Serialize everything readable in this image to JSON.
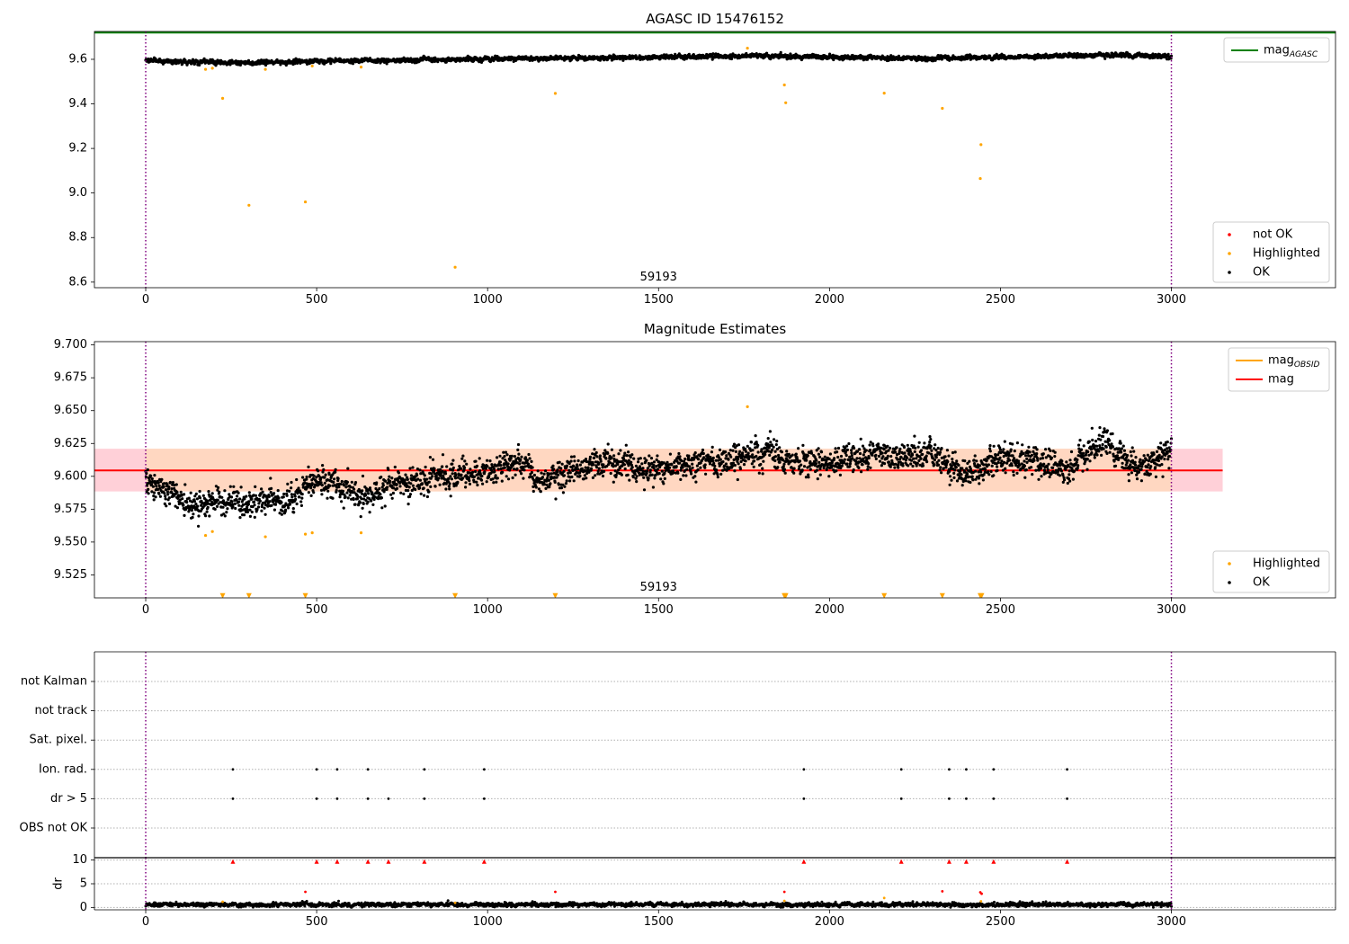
{
  "figure": {
    "colors": {
      "ok": "#000000",
      "highlighted": "#ffa500",
      "not_ok": "#ff0000",
      "agasc_line": "#008000",
      "mag_line": "#ff0000",
      "obsid_line": "#ffa500",
      "band_outer": "#ffc0cb",
      "band_inner": "#ffdab9",
      "obs_boundary": "#800080",
      "grid": "#b0b0b0"
    }
  },
  "chart_data": [
    {
      "id": "top",
      "type": "scatter",
      "title": "AGASC ID 15476152",
      "xlabel": "",
      "ylabel": "",
      "xlim": [
        -150,
        3480
      ],
      "ylim": [
        8.575,
        9.725
      ],
      "xticks": [
        0,
        500,
        1000,
        1500,
        2000,
        2500,
        3000
      ],
      "yticks": [
        8.6,
        8.8,
        9.0,
        9.2,
        9.4,
        9.6
      ],
      "ytick_labels": [
        "8.6",
        "8.8",
        "9.0",
        "9.2",
        "9.4",
        "9.6"
      ],
      "annotation": "59193",
      "obs_boundaries": [
        0,
        3000
      ],
      "hlines": [
        {
          "name": "mag_AGASC",
          "label_base": "mag",
          "label_sub": "AGASC",
          "y": 9.72,
          "x": [
            -150,
            3480
          ],
          "color": "#008000"
        }
      ],
      "legends": [
        {
          "position": "top-right",
          "entries": [
            {
              "label": "mag",
              "sub": "AGASC",
              "kind": "line",
              "color": "#008000"
            }
          ]
        },
        {
          "position": "bottom-right",
          "entries": [
            {
              "label": "not OK",
              "kind": "dot",
              "color": "#ff0000"
            },
            {
              "label": "Highlighted",
              "kind": "dot",
              "color": "#ffa500"
            },
            {
              "label": "OK",
              "kind": "dot",
              "color": "#000000"
            }
          ]
        }
      ],
      "series": [
        {
          "name": "OK",
          "color": "#000000",
          "generated": {
            "n": 3000,
            "x_range": [
              0,
              3000
            ],
            "mean": 9.6,
            "wobble": [
              [
                140,
                0.008
              ],
              [
                480,
                0.01
              ],
              [
                1100,
                0.007
              ]
            ],
            "trend": [
              [
                0,
                9.595
              ],
              [
                250,
                9.584
              ],
              [
                700,
                9.597
              ],
              [
                1200,
                9.605
              ],
              [
                1800,
                9.615
              ],
              [
                2300,
                9.603
              ],
              [
                2800,
                9.62
              ],
              [
                3000,
                9.612
              ]
            ],
            "noise": 0.008
          }
        },
        {
          "name": "Highlighted",
          "color": "#ffa500",
          "points": [
            [
              175,
              9.555
            ],
            [
              195,
              9.56
            ],
            [
              225,
              9.425
            ],
            [
              302,
              8.945
            ],
            [
              350,
              9.555
            ],
            [
              467,
              8.96
            ],
            [
              487,
              9.57
            ],
            [
              630,
              9.565
            ],
            [
              905,
              8.667
            ],
            [
              1198,
              9.447
            ],
            [
              1760,
              9.65
            ],
            [
              1868,
              9.485
            ],
            [
              1872,
              9.405
            ],
            [
              2160,
              9.448
            ],
            [
              2330,
              9.38
            ],
            [
              2443,
              9.217
            ],
            [
              2441,
              9.065
            ]
          ]
        }
      ]
    },
    {
      "id": "middle",
      "type": "scatter",
      "title": "Magnitude Estimates",
      "xlabel": "",
      "ylabel": "",
      "xlim": [
        -150,
        3480
      ],
      "ylim": [
        9.5075,
        9.7025
      ],
      "xticks": [
        0,
        500,
        1000,
        1500,
        2000,
        2500,
        3000
      ],
      "yticks": [
        9.525,
        9.55,
        9.575,
        9.6,
        9.625,
        9.65,
        9.675,
        9.7
      ],
      "ytick_labels": [
        "9.525",
        "9.550",
        "9.575",
        "9.600",
        "9.625",
        "9.650",
        "9.675",
        "9.700"
      ],
      "annotation": "59193",
      "obs_boundaries": [
        0,
        3000
      ],
      "hlines": [
        {
          "name": "mag",
          "y": 9.6045,
          "x": [
            -150,
            3480
          ],
          "color": "#ff0000"
        }
      ],
      "bands": [
        {
          "name": "mag_range",
          "y": [
            9.5885,
            9.621
          ],
          "x": [
            -150,
            3150
          ],
          "color": "#ffc0cb"
        },
        {
          "name": "mag_obsid_range",
          "y": [
            9.5885,
            9.621
          ],
          "x": [
            0,
            3000
          ],
          "color": "#ffdab9"
        }
      ],
      "legends": [
        {
          "position": "top-right",
          "entries": [
            {
              "label": "mag",
              "sub": "OBSID",
              "kind": "line",
              "color": "#ffa500"
            },
            {
              "label": "mag",
              "kind": "line",
              "color": "#ff0000"
            }
          ]
        },
        {
          "position": "bottom-right",
          "entries": [
            {
              "label": "Highlighted",
              "kind": "dot",
              "color": "#ffa500"
            },
            {
              "label": "OK",
              "kind": "dot",
              "color": "#000000"
            }
          ]
        }
      ],
      "series": [
        {
          "name": "OK",
          "color": "#000000",
          "generated": {
            "n": 3000,
            "x_range": [
              0,
              3000
            ],
            "trend": [
              [
                0,
                9.598
              ],
              [
                120,
                9.578
              ],
              [
                250,
                9.582
              ],
              [
                400,
                9.58
              ],
              [
                520,
                9.6
              ],
              [
                640,
                9.582
              ],
              [
                700,
                9.592
              ],
              [
                900,
                9.6
              ],
              [
                1000,
                9.604
              ],
              [
                1120,
                9.612
              ],
              [
                1150,
                9.595
              ],
              [
                1300,
                9.61
              ],
              [
                1500,
                9.606
              ],
              [
                1700,
                9.612
              ],
              [
                1800,
                9.62
              ],
              [
                1900,
                9.61
              ],
              [
                2000,
                9.612
              ],
              [
                2300,
                9.618
              ],
              [
                2400,
                9.602
              ],
              [
                2500,
                9.615
              ],
              [
                2700,
                9.608
              ],
              [
                2800,
                9.625
              ],
              [
                2900,
                9.605
              ],
              [
                3000,
                9.618
              ]
            ],
            "noise": 0.009
          }
        },
        {
          "name": "Highlighted",
          "color": "#ffa500",
          "points": [
            [
              175,
              9.555
            ],
            [
              195,
              9.558
            ],
            [
              350,
              9.554
            ],
            [
              467,
              9.556
            ],
            [
              487,
              9.557
            ],
            [
              630,
              9.557
            ],
            [
              1760,
              9.653
            ]
          ]
        },
        {
          "name": "Highlighted (off scale)",
          "color": "#ffa500",
          "marker": "triangle-down",
          "x": [
            225,
            302,
            467,
            905,
            1198,
            1868,
            1872,
            2160,
            2330,
            2441,
            2445
          ],
          "y": 9.509
        }
      ]
    },
    {
      "id": "flags",
      "type": "scatter",
      "title": "",
      "xlabel": "",
      "ylabel": "",
      "xlim": [
        -150,
        3480
      ],
      "obs_boundaries": [
        0,
        3000
      ],
      "categories": [
        "OBS not OK",
        "dr > 5",
        "Ion. rad.",
        "Sat. pixel.",
        "not track",
        "not Kalman"
      ],
      "flag_points": {
        "Ion. rad.": [
          255,
          500,
          560,
          650,
          815,
          990,
          1925,
          2210,
          2350,
          2400,
          2480,
          2695
        ],
        "dr > 5": [
          255,
          500,
          560,
          650,
          710,
          815,
          990,
          1925,
          2210,
          2350,
          2400,
          2480,
          2695
        ]
      }
    },
    {
      "id": "dr",
      "type": "scatter",
      "title": "",
      "xlabel": "",
      "ylabel": "dr",
      "xlim": [
        -150,
        3480
      ],
      "ylim": [
        -0.5,
        10.5
      ],
      "xticks": [
        0,
        500,
        1000,
        1500,
        2000,
        2500,
        3000
      ],
      "yticks": [
        0,
        5,
        10
      ],
      "ytick_labels": [
        "0",
        "5",
        "10"
      ],
      "obs_boundaries": [
        0,
        3000
      ],
      "series": [
        {
          "name": "OK",
          "color": "#000000",
          "generated": {
            "n": 3000,
            "x_range": [
              0,
              3000
            ],
            "trend": [
              [
                0,
                0.6
              ],
              [
                3000,
                0.6
              ]
            ],
            "noise": 0.35,
            "min": 0
          }
        },
        {
          "name": "Highlighted",
          "color": "#ffa500",
          "points": [
            [
              225,
              1.2
            ],
            [
              905,
              1.0
            ],
            [
              1868,
              1.4
            ],
            [
              2160,
              2.0
            ],
            [
              2443,
              1.3
            ]
          ]
        },
        {
          "name": "not OK",
          "color": "#ff0000",
          "points": [
            [
              467,
              3.3
            ],
            [
              1198,
              3.3
            ],
            [
              1868,
              3.3
            ],
            [
              2330,
              3.4
            ],
            [
              2441,
              3.2
            ],
            [
              2445,
              2.9
            ]
          ]
        },
        {
          "name": "not OK (clipped)",
          "color": "#ff0000",
          "marker": "triangle-up",
          "x": [
            255,
            500,
            560,
            650,
            710,
            815,
            990,
            1925,
            2210,
            2350,
            2400,
            2480,
            2695
          ],
          "y": 9.7
        }
      ]
    }
  ]
}
